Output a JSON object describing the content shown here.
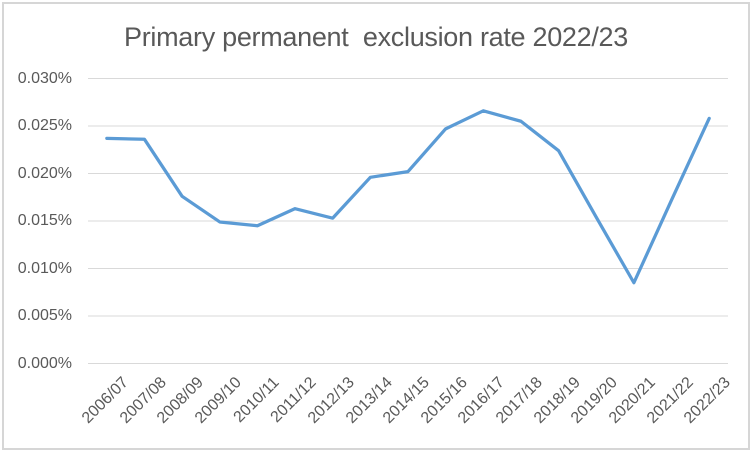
{
  "chart_data": {
    "type": "line",
    "title": "Primary permanent  exclusion rate 2022/23",
    "categories": [
      "2006/07",
      "2007/08",
      "2008/09",
      "2009/10",
      "2010/11",
      "2011/12",
      "2012/13",
      "2013/14",
      "2014/15",
      "2015/16",
      "2016/17",
      "2017/18",
      "2018/19",
      "2019/20",
      "2020/21",
      "2021/22",
      "2022/23"
    ],
    "values": [
      0.0237,
      0.0236,
      0.0176,
      0.0149,
      0.0145,
      0.0163,
      0.0153,
      0.0196,
      0.0202,
      0.0247,
      0.0266,
      0.0255,
      0.0224,
      0.0154,
      0.0085,
      0.0172,
      0.0258
    ],
    "unit": "percent",
    "xlabel": "",
    "ylabel": "",
    "ylim": [
      0,
      0.03
    ],
    "yticks": [
      {
        "value": 0.03,
        "label": "0.030%"
      },
      {
        "value": 0.025,
        "label": "0.025%"
      },
      {
        "value": 0.02,
        "label": "0.020%"
      },
      {
        "value": 0.015,
        "label": "0.015%"
      },
      {
        "value": 0.01,
        "label": "0.010%"
      },
      {
        "value": 0.005,
        "label": "0.005%"
      },
      {
        "value": 0.0,
        "label": "0.000%"
      }
    ],
    "grid": true,
    "legend": false,
    "x_label_rotation_deg": 45,
    "line_color": "#5b9bd5"
  },
  "colors": {
    "text": "#595959",
    "gridline": "#d9d9d9",
    "series_line": "#5b9bd5",
    "chart_border": "#d6d6d6",
    "background": "#ffffff"
  }
}
